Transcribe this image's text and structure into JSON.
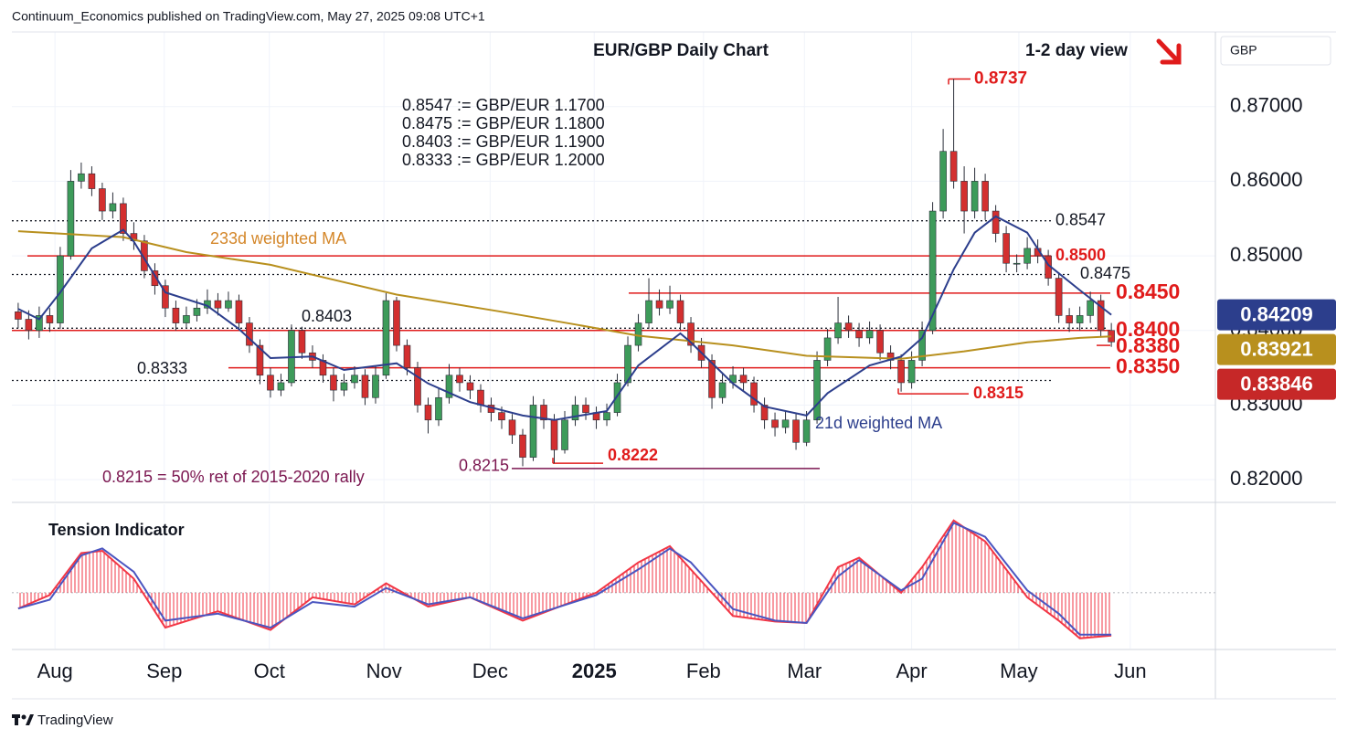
{
  "header": "Continuum_Economics published on TradingView.com, May 27, 2025 09:08 UTC+1",
  "footer": "TradingView",
  "currency": "GBP",
  "chart_data": [
    {
      "type": "candlestick",
      "title": "EUR/GBP Daily Chart",
      "subtitle": "1-2 day view",
      "annotations": [
        "0.8547 := GBP/EUR 1.1700",
        "0.8475 := GBP/EUR 1.1800",
        "0.8403 := GBP/EUR 1.1900",
        "0.8333 := GBP/EUR 1.2000"
      ],
      "note": "0.8215 = 50% ret of 2015-2020 rally",
      "xlim": [
        -0.6,
        113.9
      ],
      "xticks": [
        {
          "value": 3.5,
          "label": "Aug"
        },
        {
          "value": 13.9,
          "label": "Sep"
        },
        {
          "value": 23.9,
          "label": "Oct"
        },
        {
          "value": 34.8,
          "label": "Nov"
        },
        {
          "value": 44.9,
          "label": "Dec"
        },
        {
          "value": 54.8,
          "label": "2025"
        },
        {
          "value": 65.2,
          "label": "Feb"
        },
        {
          "value": 74.8,
          "label": "Mar"
        },
        {
          "value": 85,
          "label": "Apr"
        },
        {
          "value": 95.2,
          "label": "May"
        },
        {
          "value": 105.8,
          "label": "Jun"
        }
      ],
      "ylim": [
        0.8172,
        0.88
      ],
      "yticks": [
        {
          "value": 0.82,
          "label": "0.82000"
        },
        {
          "value": 0.83,
          "label": "0.83000"
        },
        {
          "value": 0.84,
          "label": "0.84000"
        },
        {
          "value": 0.85,
          "label": "0.85000"
        },
        {
          "value": 0.86,
          "label": "0.86000"
        },
        {
          "value": 0.87,
          "label": "0.87000"
        }
      ],
      "grid": true,
      "up_color": "#3d9b5a",
      "down_color": "#d32f2f",
      "last_price": 0.83846,
      "last_price_color": "#c62828",
      "ohlc": [
        [
          0.8425,
          0.8437,
          0.8403,
          0.8415
        ],
        [
          0.8415,
          0.8427,
          0.8388,
          0.84
        ],
        [
          0.84,
          0.8432,
          0.839,
          0.842
        ],
        [
          0.842,
          0.843,
          0.8398,
          0.841
        ],
        [
          0.841,
          0.8512,
          0.8402,
          0.85
        ],
        [
          0.85,
          0.8615,
          0.8495,
          0.86
        ],
        [
          0.86,
          0.8625,
          0.859,
          0.861
        ],
        [
          0.861,
          0.862,
          0.858,
          0.859
        ],
        [
          0.859,
          0.8598,
          0.8548,
          0.856
        ],
        [
          0.856,
          0.8585,
          0.855,
          0.857
        ],
        [
          0.857,
          0.8578,
          0.852,
          0.853
        ],
        [
          0.853,
          0.8545,
          0.8508,
          0.852
        ],
        [
          0.852,
          0.8528,
          0.847,
          0.848
        ],
        [
          0.848,
          0.849,
          0.8448,
          0.846
        ],
        [
          0.846,
          0.8468,
          0.8418,
          0.843
        ],
        [
          0.843,
          0.844,
          0.84,
          0.841
        ],
        [
          0.841,
          0.8432,
          0.8402,
          0.842
        ],
        [
          0.842,
          0.8442,
          0.8412,
          0.843
        ],
        [
          0.843,
          0.8455,
          0.8422,
          0.844
        ],
        [
          0.844,
          0.845,
          0.842,
          0.843
        ],
        [
          0.843,
          0.8452,
          0.8425,
          0.844
        ],
        [
          0.844,
          0.8448,
          0.84,
          0.841
        ],
        [
          0.841,
          0.8418,
          0.837,
          0.838
        ],
        [
          0.838,
          0.8388,
          0.8328,
          0.834
        ],
        [
          0.834,
          0.835,
          0.831,
          0.832
        ],
        [
          0.832,
          0.8342,
          0.8312,
          0.833
        ],
        [
          0.833,
          0.8408,
          0.8325,
          0.84
        ],
        [
          0.84,
          0.8405,
          0.8362,
          0.837
        ],
        [
          0.837,
          0.838,
          0.835,
          0.836
        ],
        [
          0.836,
          0.8368,
          0.833,
          0.834
        ],
        [
          0.834,
          0.835,
          0.8305,
          0.832
        ],
        [
          0.832,
          0.8342,
          0.8312,
          0.833
        ],
        [
          0.833,
          0.8352,
          0.8322,
          0.834
        ],
        [
          0.834,
          0.8348,
          0.83,
          0.831
        ],
        [
          0.831,
          0.8352,
          0.8302,
          0.834
        ],
        [
          0.834,
          0.845,
          0.8335,
          0.844
        ],
        [
          0.844,
          0.8445,
          0.8372,
          0.838
        ],
        [
          0.838,
          0.8388,
          0.834,
          0.835
        ],
        [
          0.835,
          0.8358,
          0.829,
          0.83
        ],
        [
          0.83,
          0.831,
          0.8262,
          0.828
        ],
        [
          0.828,
          0.8322,
          0.8272,
          0.831
        ],
        [
          0.831,
          0.8355,
          0.8302,
          0.834
        ],
        [
          0.834,
          0.835,
          0.8318,
          0.833
        ],
        [
          0.833,
          0.834,
          0.8308,
          0.832
        ],
        [
          0.832,
          0.8328,
          0.829,
          0.83
        ],
        [
          0.83,
          0.831,
          0.8278,
          0.829
        ],
        [
          0.829,
          0.8298,
          0.8268,
          0.828
        ],
        [
          0.828,
          0.8288,
          0.8248,
          0.826
        ],
        [
          0.826,
          0.8268,
          0.8218,
          0.823
        ],
        [
          0.823,
          0.8312,
          0.8225,
          0.83
        ],
        [
          0.83,
          0.8308,
          0.8268,
          0.828
        ],
        [
          0.828,
          0.8288,
          0.8222,
          0.824
        ],
        [
          0.824,
          0.8292,
          0.8235,
          0.828
        ],
        [
          0.828,
          0.8312,
          0.8272,
          0.83
        ],
        [
          0.83,
          0.831,
          0.828,
          0.829
        ],
        [
          0.829,
          0.8298,
          0.8268,
          0.828
        ],
        [
          0.828,
          0.8302,
          0.8272,
          0.829
        ],
        [
          0.829,
          0.8342,
          0.8285,
          0.833
        ],
        [
          0.833,
          0.8392,
          0.8325,
          0.838
        ],
        [
          0.838,
          0.8422,
          0.8372,
          0.841
        ],
        [
          0.841,
          0.847,
          0.8402,
          0.844
        ],
        [
          0.844,
          0.8455,
          0.842,
          0.843
        ],
        [
          0.843,
          0.846,
          0.8422,
          0.844
        ],
        [
          0.844,
          0.8448,
          0.84,
          0.841
        ],
        [
          0.841,
          0.8418,
          0.837,
          0.838
        ],
        [
          0.838,
          0.839,
          0.835,
          0.836
        ],
        [
          0.836,
          0.8368,
          0.8295,
          0.831
        ],
        [
          0.831,
          0.8342,
          0.8302,
          0.833
        ],
        [
          0.833,
          0.8352,
          0.8322,
          0.834
        ],
        [
          0.834,
          0.835,
          0.8318,
          0.833
        ],
        [
          0.833,
          0.8338,
          0.829,
          0.83
        ],
        [
          0.83,
          0.831,
          0.8268,
          0.828
        ],
        [
          0.828,
          0.829,
          0.8258,
          0.827
        ],
        [
          0.827,
          0.8292,
          0.8262,
          0.828
        ],
        [
          0.828,
          0.8288,
          0.824,
          0.825
        ],
        [
          0.825,
          0.8292,
          0.8245,
          0.828
        ],
        [
          0.828,
          0.8372,
          0.8275,
          0.836
        ],
        [
          0.836,
          0.8402,
          0.8352,
          0.839
        ],
        [
          0.839,
          0.8445,
          0.8382,
          0.841
        ],
        [
          0.841,
          0.842,
          0.839,
          0.84
        ],
        [
          0.84,
          0.841,
          0.8378,
          0.839
        ],
        [
          0.839,
          0.8412,
          0.8382,
          0.84
        ],
        [
          0.84,
          0.8408,
          0.836,
          0.837
        ],
        [
          0.837,
          0.838,
          0.8348,
          0.836
        ],
        [
          0.836,
          0.8368,
          0.8318,
          0.833
        ],
        [
          0.833,
          0.8372,
          0.8322,
          0.836
        ],
        [
          0.836,
          0.8412,
          0.8352,
          0.84
        ],
        [
          0.84,
          0.8572,
          0.8395,
          0.856
        ],
        [
          0.856,
          0.867,
          0.855,
          0.864
        ],
        [
          0.864,
          0.8737,
          0.859,
          0.86
        ],
        [
          0.86,
          0.862,
          0.853,
          0.856
        ],
        [
          0.856,
          0.8618,
          0.855,
          0.86
        ],
        [
          0.86,
          0.861,
          0.8548,
          0.856
        ],
        [
          0.856,
          0.8568,
          0.8518,
          0.853
        ],
        [
          0.853,
          0.854,
          0.8478,
          0.849
        ],
        [
          0.849,
          0.8502,
          0.8478,
          0.849
        ],
        [
          0.849,
          0.8525,
          0.8482,
          0.851
        ],
        [
          0.851,
          0.8522,
          0.849,
          0.85
        ],
        [
          0.85,
          0.8508,
          0.846,
          0.847
        ],
        [
          0.847,
          0.8478,
          0.841,
          0.842
        ],
        [
          0.842,
          0.843,
          0.8398,
          0.841
        ],
        [
          0.841,
          0.8432,
          0.84,
          0.842
        ],
        [
          0.842,
          0.8452,
          0.841,
          0.844
        ],
        [
          0.844,
          0.8448,
          0.8392,
          0.84
        ],
        [
          0.84,
          0.841,
          0.8378,
          0.83846
        ]
      ],
      "series": [
        {
          "name": "233d weighted MA",
          "color": "#b8901e",
          "last_value": 0.83921,
          "x": [
            0,
            10,
            16,
            24,
            36,
            46,
            53,
            59,
            68,
            75,
            84,
            90,
            96,
            101,
            104
          ],
          "values": [
            0.8533,
            0.8525,
            0.8505,
            0.8488,
            0.8448,
            0.8425,
            0.8408,
            0.8393,
            0.838,
            0.8366,
            0.8362,
            0.8372,
            0.8384,
            0.839,
            0.8392
          ]
        },
        {
          "name": "21d weighted MA",
          "color": "#2c3e8c",
          "last_value": 0.84209,
          "x": [
            0,
            2,
            4,
            7,
            10,
            11,
            14,
            18,
            21,
            24,
            28,
            31,
            36,
            39,
            43,
            48,
            51,
            56,
            59,
            63,
            64,
            68,
            71,
            75,
            77,
            81,
            84,
            86,
            89,
            91,
            93,
            96,
            98,
            101,
            104
          ],
          "values": [
            0.8429,
            0.8415,
            0.8451,
            0.851,
            0.8535,
            0.8519,
            0.8451,
            0.8433,
            0.8402,
            0.8363,
            0.8365,
            0.8347,
            0.8356,
            0.8329,
            0.8304,
            0.8286,
            0.828,
            0.8292,
            0.8353,
            0.8396,
            0.8384,
            0.8329,
            0.8298,
            0.8286,
            0.8316,
            0.8353,
            0.8365,
            0.839,
            0.8482,
            0.8531,
            0.8553,
            0.8531,
            0.8488,
            0.8454,
            0.8421
          ]
        }
      ],
      "levels": [
        {
          "value": 0.8737,
          "color": "#e01b1b",
          "style": "solid"
        },
        {
          "value": 0.8547,
          "color": "#131722",
          "style": "dotted"
        },
        {
          "value": 0.85,
          "label": "0.8500",
          "color": "#e01b1b",
          "style": "solid"
        },
        {
          "value": 0.8475,
          "color": "#131722",
          "style": "dotted"
        },
        {
          "value": 0.845,
          "label": "0.8450",
          "color": "#e01b1b",
          "style": "solid"
        },
        {
          "value": 0.8403,
          "color": "#131722",
          "style": "dotted"
        },
        {
          "value": 0.84,
          "label": "0.8400",
          "color": "#e01b1b",
          "style": "solid"
        },
        {
          "value": 0.838,
          "label": "0.8380",
          "color": "#e01b1b",
          "style": "solid"
        },
        {
          "value": 0.835,
          "label": "0.8350",
          "color": "#e01b1b",
          "style": "solid"
        },
        {
          "value": 0.8333,
          "color": "#131722",
          "style": "dotted"
        },
        {
          "value": 0.8315,
          "color": "#e01b1b",
          "style": "solid"
        },
        {
          "value": 0.8222,
          "color": "#e01b1b",
          "style": "solid"
        },
        {
          "value": 0.8215,
          "color": "#7b1650",
          "style": "solid"
        }
      ]
    },
    {
      "type": "line",
      "title": "Tension Indicator",
      "xlim": [
        -0.6,
        113.9
      ],
      "ylim": [
        -1.2,
        1.9
      ],
      "series": [
        {
          "color": "#f23645",
          "fill": "hatch",
          "x": [
            0,
            3,
            6,
            8,
            11,
            14,
            19,
            24,
            28,
            32,
            35,
            39,
            43,
            48,
            55,
            59,
            62,
            64,
            68,
            72,
            75,
            78,
            80,
            84,
            86,
            89,
            92,
            96,
            99,
            101,
            104
          ],
          "values": [
            -0.34,
            -0.05,
            0.85,
            0.9,
            0.3,
            -0.75,
            -0.4,
            -0.8,
            -0.1,
            -0.25,
            0.2,
            -0.3,
            -0.1,
            -0.6,
            0,
            0.65,
            1.0,
            0.5,
            -0.5,
            -0.62,
            -0.65,
            0.55,
            0.75,
            0,
            0.55,
            1.55,
            1.1,
            -0.1,
            -0.6,
            -0.98,
            -0.92
          ]
        },
        {
          "color": "#4a55c0",
          "x": [
            0,
            3,
            6,
            8,
            11,
            14,
            19,
            24,
            28,
            32,
            35,
            39,
            43,
            48,
            55,
            59,
            62,
            64,
            68,
            72,
            75,
            78,
            80,
            84,
            86,
            89,
            92,
            96,
            99,
            101,
            104
          ],
          "values": [
            -0.34,
            -0.15,
            0.8,
            0.95,
            0.45,
            -0.6,
            -0.45,
            -0.75,
            -0.2,
            -0.3,
            0.1,
            -0.25,
            -0.1,
            -0.55,
            -0.05,
            0.5,
            0.95,
            0.65,
            -0.35,
            -0.6,
            -0.65,
            0.35,
            0.7,
            0.05,
            0.3,
            1.5,
            1.2,
            0.05,
            -0.45,
            -0.9,
            -0.9
          ]
        }
      ]
    }
  ]
}
